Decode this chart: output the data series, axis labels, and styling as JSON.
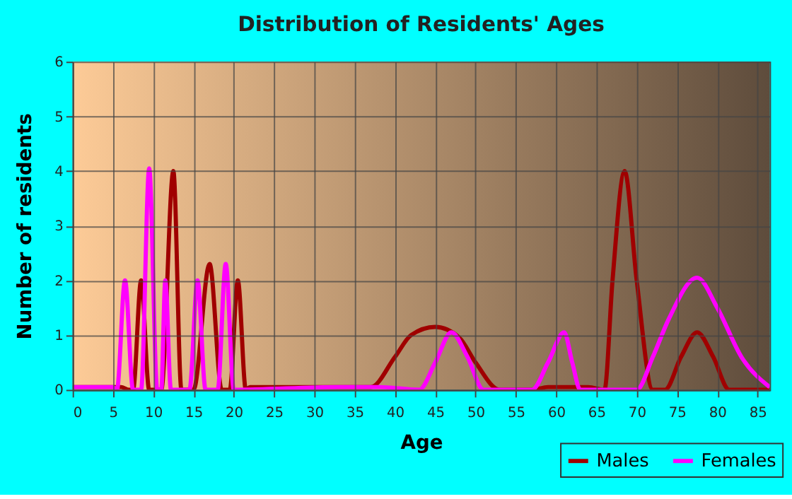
{
  "chart_data": {
    "type": "line",
    "title": "Distribution of Residents' Ages",
    "xlabel": "Age",
    "ylabel": "Number of residents",
    "xlim": [
      0,
      86.5
    ],
    "xticks": [
      0,
      5,
      10,
      15,
      20,
      25,
      30,
      35,
      40,
      45,
      50,
      55,
      60,
      65,
      70,
      75,
      80,
      85
    ],
    "ylim": [
      0,
      6
    ],
    "yticks": [
      0,
      1,
      2,
      3,
      4,
      5,
      6
    ],
    "grid": true,
    "legend": "bottom right",
    "series": [
      {
        "name": "Males",
        "color": "#a00000",
        "x": [
          0,
          6,
          7,
          7.5,
          8.5,
          9.5,
          11,
          12.5,
          13.5,
          15,
          17,
          18.5,
          19.5,
          20.5,
          21.5,
          22,
          37,
          40,
          42,
          45,
          48,
          50,
          53,
          57,
          59,
          64,
          66,
          67,
          68.5,
          70,
          72,
          73.5,
          75.5,
          77.5,
          79.5,
          81.5,
          86.5
        ],
        "values": [
          0.05,
          0.05,
          0,
          0,
          2,
          0,
          0,
          4,
          0,
          0,
          2.3,
          0,
          0,
          2,
          0,
          0.05,
          0.05,
          0.6,
          1,
          1.15,
          0.95,
          0.5,
          0,
          0,
          0.05,
          0.05,
          0,
          2,
          4,
          2,
          0,
          0,
          0.6,
          1.05,
          0.6,
          0,
          0
        ]
      },
      {
        "name": "Females",
        "color": "#ff00ff",
        "x": [
          0,
          5,
          5.5,
          6.5,
          7.5,
          8.5,
          9.5,
          10.5,
          11,
          11.5,
          12.2,
          14.5,
          15.5,
          16.5,
          18,
          19,
          20,
          33,
          38,
          43,
          45,
          47,
          49,
          51,
          57,
          59,
          61,
          62,
          63,
          70,
          72,
          74,
          77.5,
          80,
          83,
          86.5
        ],
        "values": [
          0.05,
          0.05,
          0,
          2,
          0,
          0,
          4.05,
          0,
          0,
          2,
          0,
          0,
          2,
          0,
          0,
          2.3,
          0,
          0.05,
          0.05,
          0,
          0.5,
          1.05,
          0.6,
          0,
          0,
          0.5,
          1.05,
          0.5,
          0,
          0,
          0.6,
          1.3,
          2.05,
          1.5,
          0.6,
          0.05
        ]
      }
    ]
  }
}
